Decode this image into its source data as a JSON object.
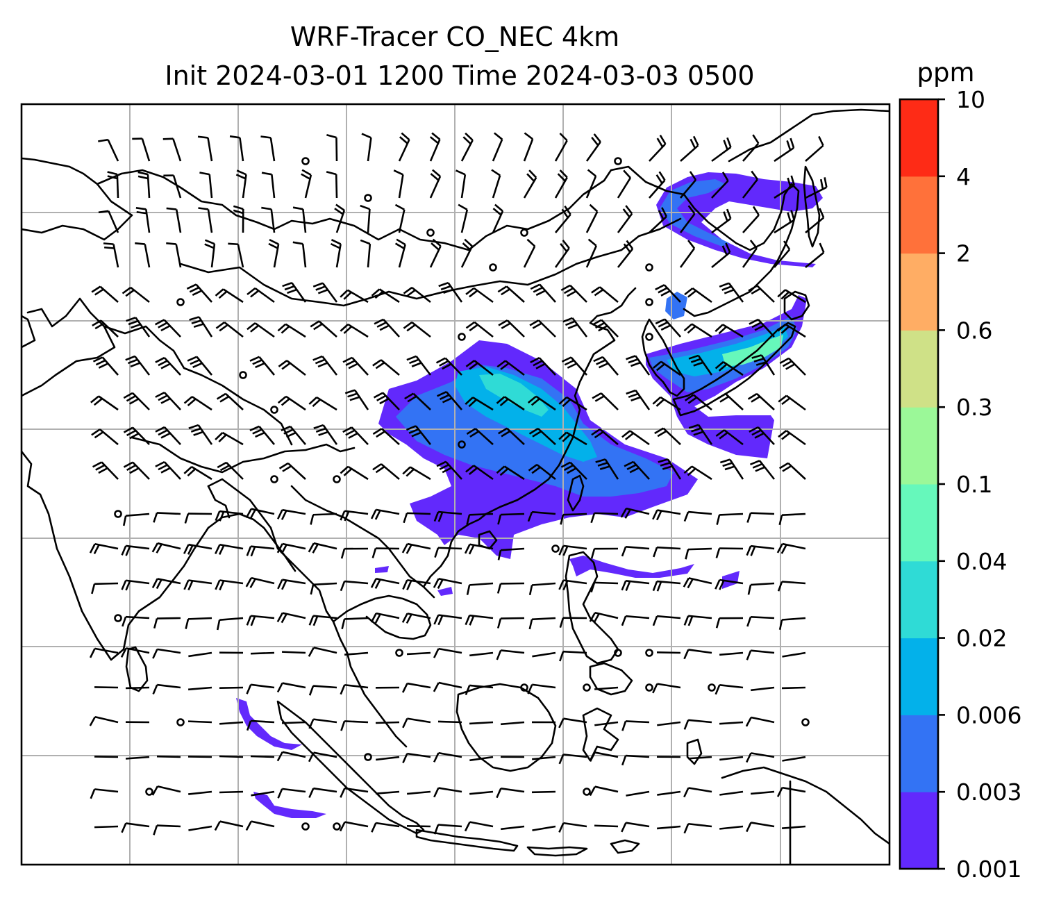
{
  "figure": {
    "title_line1": "WRF-Tracer CO_NEC 4km",
    "title_line2": "Init 2024-03-01 1200 Time 2024-03-03 0500"
  },
  "colorbar": {
    "unit": "ppm",
    "levels": [
      "0.001",
      "0.003",
      "0.006",
      "0.02",
      "0.04",
      "0.1",
      "0.3",
      "0.6",
      "2",
      "4",
      "10"
    ],
    "colors": [
      "#6229fc",
      "#3373f4",
      "#03b1ea",
      "#2fdbd6",
      "#66f8bb",
      "#9bf898",
      "#cfe187",
      "#ffad64",
      "#ff713a",
      "#fe2b16"
    ]
  },
  "map": {
    "gridlines": true,
    "gridline_color": "#b0b0b0",
    "coastline_color": "#000000"
  },
  "wind_barbs": {
    "color": "#000000"
  }
}
